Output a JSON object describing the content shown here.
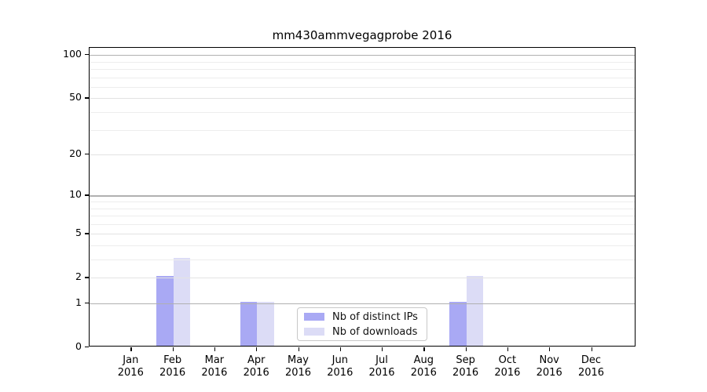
{
  "title": "mm430ammvegagprobe 2016",
  "chart_data": {
    "type": "bar",
    "title": "mm430ammvegagprobe 2016",
    "categories": [
      "Jan",
      "Feb",
      "Mar",
      "Apr",
      "May",
      "Jun",
      "Jul",
      "Aug",
      "Sep",
      "Oct",
      "Nov",
      "Dec"
    ],
    "year": "2016",
    "series": [
      {
        "name": "Nb of distinct IPs",
        "color": "#a9a9f4",
        "values": [
          0,
          2,
          0,
          1,
          0,
          0,
          0,
          0,
          1,
          0,
          0,
          0
        ]
      },
      {
        "name": "Nb of downloads",
        "color": "#dcdcf6",
        "values": [
          0,
          3,
          0,
          1,
          0,
          0,
          0,
          0,
          2,
          0,
          0,
          0
        ]
      }
    ],
    "yscale": "log1p",
    "ylim": [
      0,
      112
    ],
    "yticks_labeled": [
      0,
      1,
      2,
      5,
      10,
      20,
      50,
      100
    ],
    "yticks_major": [
      1,
      10,
      100
    ],
    "yticks_sub": [
      2,
      5,
      20,
      50
    ],
    "yticks_minor": [
      3,
      4,
      6,
      7,
      8,
      9,
      30,
      40,
      60,
      70,
      80,
      90
    ],
    "grid": true,
    "legend_position": "lower center",
    "colors": {
      "grid_major": "#b0b0b0",
      "grid_sub": "#e3e3e3",
      "grid_minor": "#ededed",
      "spine": "#000000"
    }
  }
}
